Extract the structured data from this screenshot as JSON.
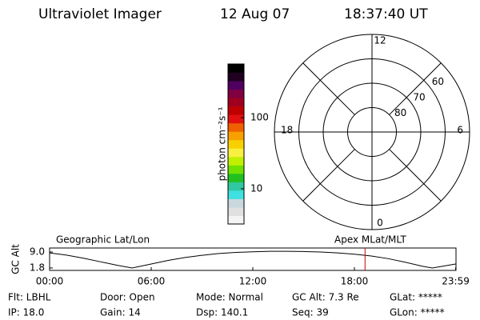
{
  "header": {
    "instrument": "Ultraviolet Imager",
    "date": "12 Aug 07",
    "time": "18:37:40 UT"
  },
  "colorbar": {
    "label": "photon cm⁻²s⁻¹",
    "log": true,
    "lim": [
      3.2,
      566
    ],
    "ticks": [
      10,
      100
    ]
  },
  "polar": {
    "lat_min": 50,
    "lat_rings": [
      60,
      70,
      80
    ],
    "mlt_labels": [
      12,
      6,
      0,
      18
    ]
  },
  "chart_data": {
    "type": "line",
    "ylabel": "GC Alt",
    "left_label": "Geographic Lat/Lon",
    "right_label": "Apex MLat/MLT",
    "x": [
      0,
      1,
      2,
      3,
      4,
      4.87,
      6,
      7,
      8,
      9,
      10,
      11,
      12,
      13,
      14,
      15,
      16,
      17,
      18,
      19,
      20,
      21,
      22,
      22.6,
      23.98
    ],
    "series": [
      {
        "name": "GC Alt",
        "color": "#000000",
        "values": [
          8.6,
          7.6,
          6.2,
          4.6,
          3.0,
          1.8,
          3.6,
          5.2,
          6.5,
          7.5,
          8.3,
          8.8,
          9.1,
          9.3,
          9.3,
          9.2,
          9.0,
          8.6,
          8.0,
          7.2,
          6.0,
          4.4,
          2.6,
          1.8,
          3.6
        ]
      }
    ],
    "xlim": [
      0,
      24
    ],
    "ylim": [
      0.7,
      10.8
    ],
    "xticks": [
      {
        "value": 0,
        "label": "00:00"
      },
      {
        "value": 6,
        "label": "06:00"
      },
      {
        "value": 12,
        "label": "12:00"
      },
      {
        "value": 18,
        "label": "18:00"
      },
      {
        "value": 23.98,
        "label": "23:59"
      }
    ],
    "yticks": [
      1.8,
      {
        "value": 9,
        "label": "9.0"
      }
    ],
    "marker_x": 18.628,
    "marker_color": "#cc0000"
  },
  "footer": {
    "rows": [
      [
        "Flt: LBHL",
        "Door: Open",
        "Mode: Normal",
        "GC Alt: 7.3 Re",
        "GLat: *****"
      ],
      [
        "IP: 18.0",
        "Gain: 14",
        "Dsp: 140.1",
        "Seq: 39",
        "GLon: *****"
      ]
    ]
  }
}
